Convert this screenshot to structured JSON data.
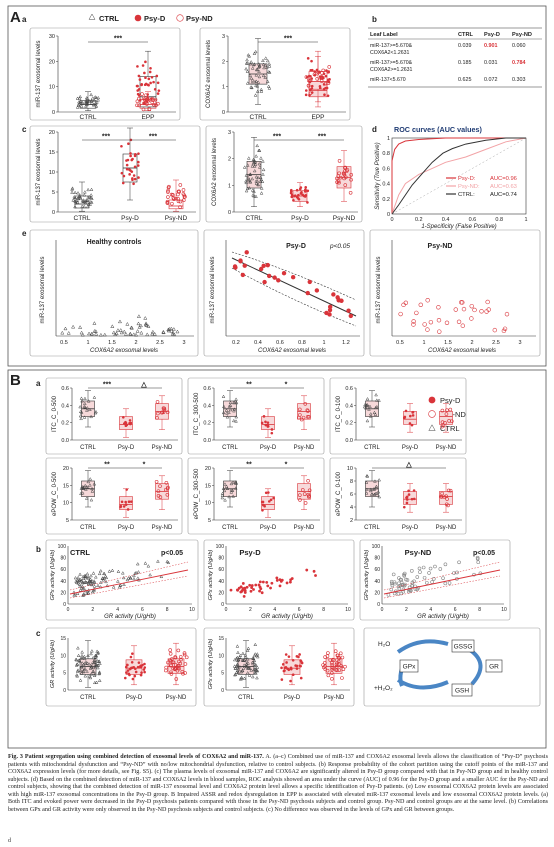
{
  "panelA": {
    "letter": "A",
    "legend": {
      "ctrl": "CTRL",
      "psyd": "Psy-D",
      "psynd": "Psy-ND"
    },
    "subpanels": [
      "a",
      "b",
      "c",
      "d",
      "e"
    ],
    "a1": {
      "ylabel": "miR-137 exosomal levels",
      "yticks": [
        "0",
        "10",
        "20",
        "30"
      ],
      "categories": [
        "CTRL",
        "EPP"
      ],
      "sig": "***"
    },
    "a2": {
      "ylabel": "COX6A2 exosomal levels",
      "yticks": [
        "0",
        "1",
        "2",
        "3"
      ],
      "categories": [
        "CTRL",
        "EPP"
      ],
      "sig": "***"
    },
    "c1": {
      "ylabel": "miR-137 exosomal levels",
      "yticks": [
        "0",
        "5",
        "10",
        "15",
        "20"
      ],
      "categories": [
        "CTRL",
        "Psy-D",
        "Psy-ND"
      ],
      "sig": [
        "***",
        "***"
      ]
    },
    "c2": {
      "ylabel": "COX6A2 exosomal levels",
      "yticks": [
        "0",
        "1",
        "2",
        "3"
      ],
      "categories": [
        "CTRL",
        "Psy-D",
        "Psy-ND"
      ],
      "sig": [
        "***",
        "***"
      ]
    },
    "table": {
      "headers": [
        "Leaf Label",
        "CTRL",
        "Psy-D",
        "Psy-ND"
      ],
      "rows": [
        {
          "label": [
            "miR-137>=5.670&",
            "COX6A2<1.2631"
          ],
          "ctrl": "0.039",
          "psyd": "0.901",
          "psynd": "0.060"
        },
        {
          "label": [
            "miR-137>=5.670&",
            "COX6A2>=1.2631"
          ],
          "ctrl": "0.185",
          "psyd": "0.031",
          "psynd": "0.784"
        },
        {
          "label": [
            "miR-137<5.670"
          ],
          "ctrl": "0.625",
          "psyd": "0.072",
          "psynd": "0.303"
        }
      ]
    },
    "roc": {
      "title": "ROC curves (AUC values)",
      "xlabel": "1-Specificity (False Positive)",
      "ylabel": "Sensitivity (True Positive)",
      "ticks": [
        "0",
        "0.2",
        "0.4",
        "0.6",
        "0.8",
        "1"
      ],
      "legend": [
        {
          "name": "Psy-D:",
          "auc": "AUC=0.96",
          "color": "#d9343a"
        },
        {
          "name": "Psy-ND:",
          "auc": "AUC=0.63",
          "color": "#f2a3a6"
        },
        {
          "name": "CTRL:",
          "auc": "AUC=0.74",
          "color": "#333333"
        }
      ]
    },
    "e": {
      "titles": [
        "Healthy controls",
        "Psy-D",
        "Psy-ND"
      ],
      "ylabel": "miR-137 exosomal levels",
      "xlabel": "COX6A2 exosomal levels",
      "pvalue": "p<0.05",
      "xticks1": [
        "0.5",
        "1",
        "1.5",
        "2",
        "2.5",
        "3"
      ],
      "xticks2": [
        "0.2",
        "0.4",
        "0.6",
        "0.8",
        "1",
        "1.2"
      ],
      "xticks3": [
        "0.5",
        "1",
        "1.5",
        "2",
        "2.5",
        "3"
      ]
    }
  },
  "panelB": {
    "letter": "B",
    "subpanels": [
      "a",
      "b",
      "c"
    ],
    "legend": {
      "psyd": "Psy-D",
      "psynd": "Psy-ND",
      "ctrl": "CTRL"
    },
    "categories": [
      "CTRL",
      "Psy-D",
      "Psy-ND"
    ],
    "a_ylabels": [
      "ITC_C_0-500",
      "ITC_C_300-500",
      "ITC_C_0-100",
      "ePOW_C_0-500",
      "ePOW_C_300-500",
      "ePOW_C_0-100"
    ],
    "a_sigs": [
      [
        "***",
        "△"
      ],
      [
        "**",
        "*"
      ],
      [],
      [
        "**",
        "*"
      ],
      [
        "**",
        "*"
      ],
      [
        "△"
      ]
    ],
    "b": {
      "titles": [
        "CTRL",
        "Psy-D",
        "Psy-ND"
      ],
      "pvalues": [
        "p<0.05",
        "",
        "p<0.05"
      ],
      "ylabel": "GPx activity (U/gHb)",
      "xlabel": "GR activity (U/gHb)",
      "yticks": [
        "0",
        "20",
        "40",
        "60",
        "80",
        "100"
      ],
      "xticks": [
        "0",
        "2",
        "4",
        "6",
        "8",
        "10"
      ]
    },
    "c": {
      "ylabels": [
        "GR activity (U/gHb)",
        "GPx activity (U/gHb)"
      ],
      "cycle": {
        "h2o": "H₂O",
        "gpx": "GPx",
        "gssg": "GSSG",
        "gsh": "GSH",
        "gr": "GR",
        "h2o2": "+H₂O₂"
      }
    }
  },
  "caption": {
    "title": "Fig. 3   Patient segregation using combined detection of exosomal levels of COX6A2 and miR-137.",
    "body": " A. (a–c) Combined use of miR-137 and COX6A2 exosomal levels allows the classification of “Psy-D” psychosis patients with mitochondrial dysfunction and “Psy-ND” with no/low mitochondrial dysfunction, relative to control subjects. (b) Response probability of the cohort partition using the cutoff points of the miR-137 and COX6A2 expression levels (for more details, see Fig. S5). (c) The plasma levels of exosomal miR-137 and COX6A2 are significantly altered in Psy-D group compared with that in Psy-ND group and in healthy control subjects. (d) Based on the combined detection of miR-137 and COX6A2 levels in blood samples, ROC analysis showed an area under the curve (AUC) of 0.96 for the Psy-D group and a smaller AUC for the Psy-ND and control subjects, showing that the combined detection of miR-137 exosomal level and COX6A2 protein level allows a specific identification of Psy-D patients. (e) Low exosomal COX6A2 protein levels are associated with high miR-137 exosomal concentrations in the Psy-D group. B Impaired ASSR and redox dysregulation in EPP is associated with elevated miR-137 exosomal levels and low exosomal COX6A2 protein levels. (a) Both ITC and evoked power were decreased in the Psy-D psychosis patients compared with those in the Psy-ND psychosis subjects and control group. Psy-ND and control groups are at the same level. (b) Correlations between GPx and GR activity were only observed in the Psy-ND psychosis subjects and control subjects. (c) No difference was observed in the levels of GPx and GR between groups.",
    "footnote": "d"
  },
  "colors": {
    "red": "#d9343a",
    "pink": "#f08a8f",
    "box": "#f7d9da",
    "gray": "#555555",
    "title_blue": "#1f3b73"
  }
}
